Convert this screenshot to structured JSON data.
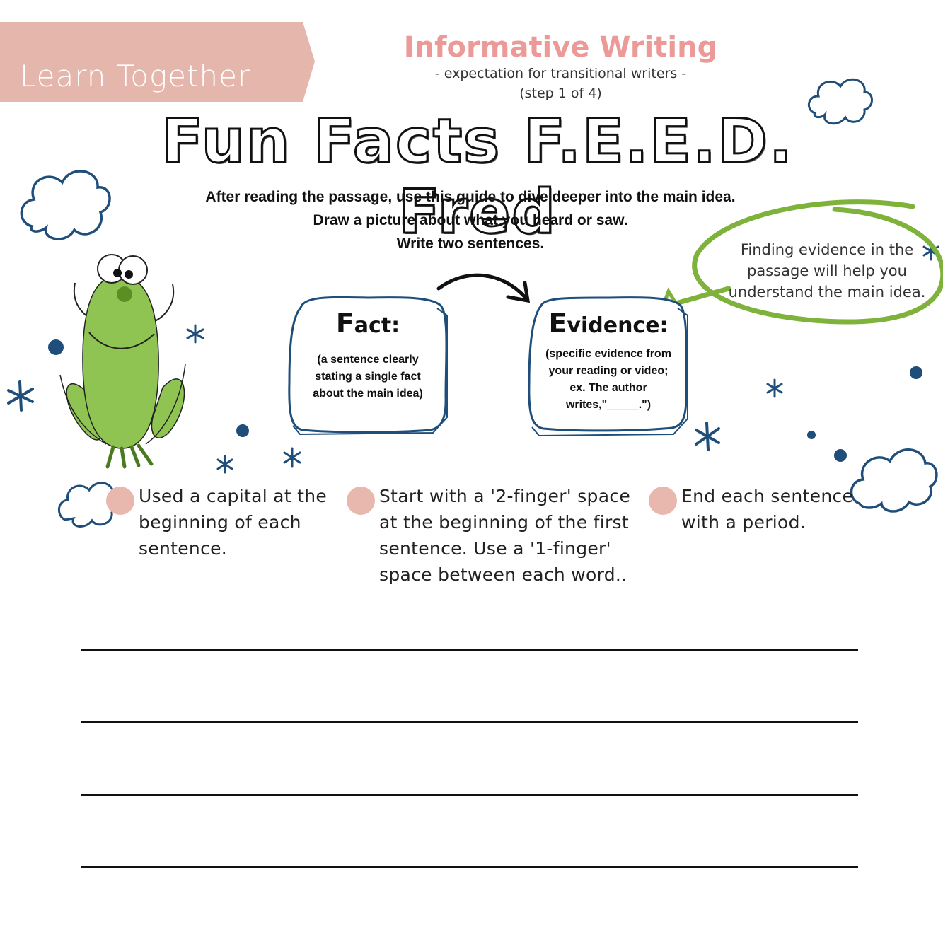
{
  "banner": {
    "label": "Learn Together",
    "color": "#e4b6ac"
  },
  "header": {
    "title": "Informative Writing",
    "subtitle": "- expectation for transitional writers -",
    "step": "(step 1 of 4)",
    "title_color": "#eb9a97"
  },
  "heading": "Fun Facts F.E.E.D. Fred",
  "instructions": [
    "After reading the passage, use this guide to dive deeper into the main idea.",
    "Draw a picture about what you heard or saw.",
    "Write two sentences."
  ],
  "cards": {
    "fact": {
      "initial": "F",
      "rest": "act:",
      "description": "(a sentence clearly stating a single fact about the main idea)"
    },
    "evidence": {
      "initial": "E",
      "rest": "vidence:",
      "description": "(specific evidence from your reading or video; ex. The author writes,\"_____.\")"
    }
  },
  "note": "Finding evidence in the passage will help you understand the main idea.",
  "rules": [
    {
      "text": "Used a capital at the beginning of each sentence."
    },
    {
      "text": "Start with a '2-finger' space at the beginning of the first sentence. Use a '1-finger' space between each word.."
    },
    {
      "text": "End each sentence with a period."
    }
  ],
  "colors": {
    "navy": "#1f4e7a",
    "green": "#7fb23a",
    "frog_green": "#8fc452",
    "dot_pink": "#e8b7ad"
  },
  "icons": [
    "cloud-icon",
    "asterisk-icon",
    "dot-icon",
    "arrow-icon",
    "frog-illustration"
  ]
}
